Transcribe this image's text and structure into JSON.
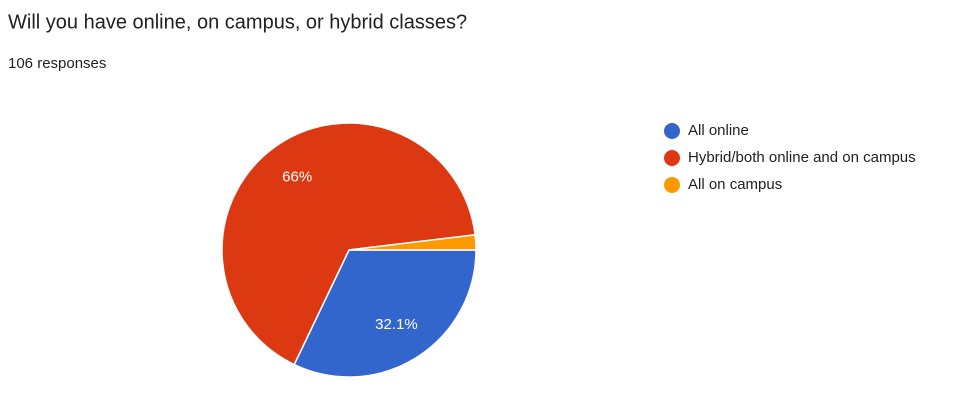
{
  "chart_data": {
    "type": "pie",
    "title": "Will you have online, on campus, or hybrid classes?",
    "subtitle": "106 responses",
    "categories": [
      "All online",
      "Hybrid/both online and on campus",
      "All on campus"
    ],
    "values": [
      32.1,
      66,
      1.9
    ],
    "value_labels": [
      "32.1%",
      "66%",
      null
    ],
    "colors": [
      "#3366cc",
      "#dc3912",
      "#ff9900"
    ],
    "legend": "right"
  }
}
